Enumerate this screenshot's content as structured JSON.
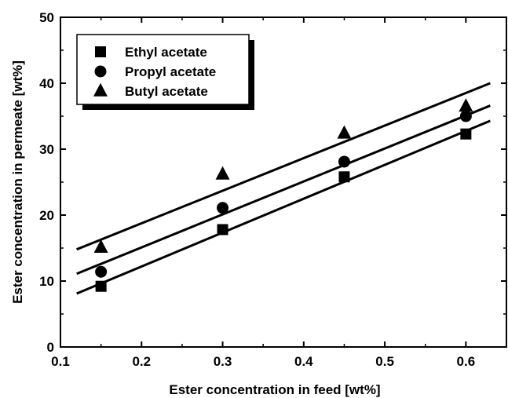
{
  "chart_data": {
    "type": "scatter",
    "title": "",
    "xlabel": "Ester concentration in feed [wt%]",
    "ylabel": "Ester concentration in permeate [wt%]",
    "xlim": [
      0.1,
      0.65
    ],
    "ylim": [
      0,
      50
    ],
    "xticks": [
      0.1,
      0.2,
      0.3,
      0.4,
      0.5,
      0.6
    ],
    "xtick_labels": [
      "0.1",
      "0.2",
      "0.3",
      "0.4",
      "0.5",
      "0.6"
    ],
    "yticks": [
      0,
      10,
      20,
      30,
      40,
      50
    ],
    "ytick_labels": [
      "0",
      "10",
      "20",
      "30",
      "40",
      "50"
    ],
    "grid": false,
    "legend_position": "top-left",
    "series": [
      {
        "name": "Ethyl acetate",
        "marker": "square",
        "x": [
          0.15,
          0.3,
          0.45,
          0.6
        ],
        "y": [
          9.2,
          17.8,
          25.8,
          32.3
        ],
        "fit_line": {
          "x": [
            0.12,
            0.63
          ],
          "y": [
            8.1,
            34.3
          ]
        }
      },
      {
        "name": "Propyl acetate",
        "marker": "circle",
        "x": [
          0.15,
          0.3,
          0.45,
          0.6
        ],
        "y": [
          11.4,
          21.1,
          28.1,
          35.0
        ],
        "fit_line": {
          "x": [
            0.12,
            0.63
          ],
          "y": [
            11.1,
            36.6
          ]
        }
      },
      {
        "name": "Butyl acetate",
        "marker": "triangle",
        "x": [
          0.15,
          0.3,
          0.45,
          0.6
        ],
        "y": [
          15.1,
          26.2,
          32.4,
          36.5
        ],
        "fit_line": {
          "x": [
            0.12,
            0.63
          ],
          "y": [
            14.8,
            40.0
          ]
        }
      }
    ]
  }
}
